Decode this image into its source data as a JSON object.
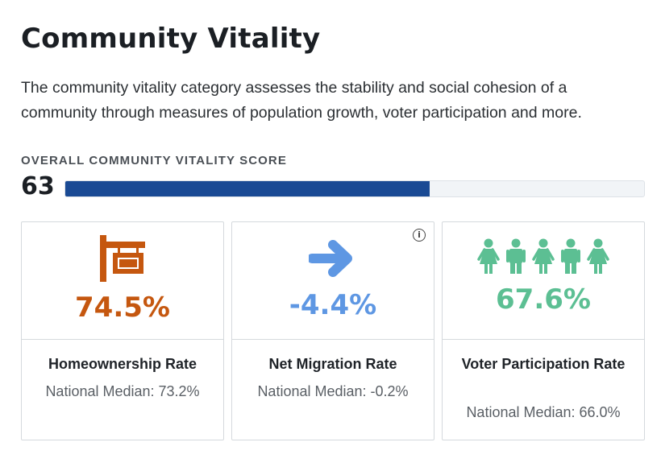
{
  "header": {
    "title": "Community Vitality",
    "description": "The community vitality category assesses the stability and social cohesion of a community through measures of population growth, voter participation and more."
  },
  "overall": {
    "label": "OVERALL COMMUNITY VITALITY SCORE",
    "score": "63",
    "bar_fraction": 0.63,
    "bar_color": "#1a4a94"
  },
  "cards": [
    {
      "icon": "house-sign-icon",
      "value": "74.5%",
      "color": "#c5570f",
      "name": "Homeownership Rate",
      "median": "National Median: 73.2%"
    },
    {
      "icon": "right-arrow-icon",
      "value": "-4.4%",
      "color": "#5e97e3",
      "name": "Net Migration Rate",
      "median": "National Median: -0.2%",
      "info_icon": "info-icon"
    },
    {
      "icon": "people-icon",
      "value": "67.6%",
      "color": "#5cbf93",
      "name": "Voter Participation Rate",
      "median": "National Median: 66.0%"
    }
  ]
}
